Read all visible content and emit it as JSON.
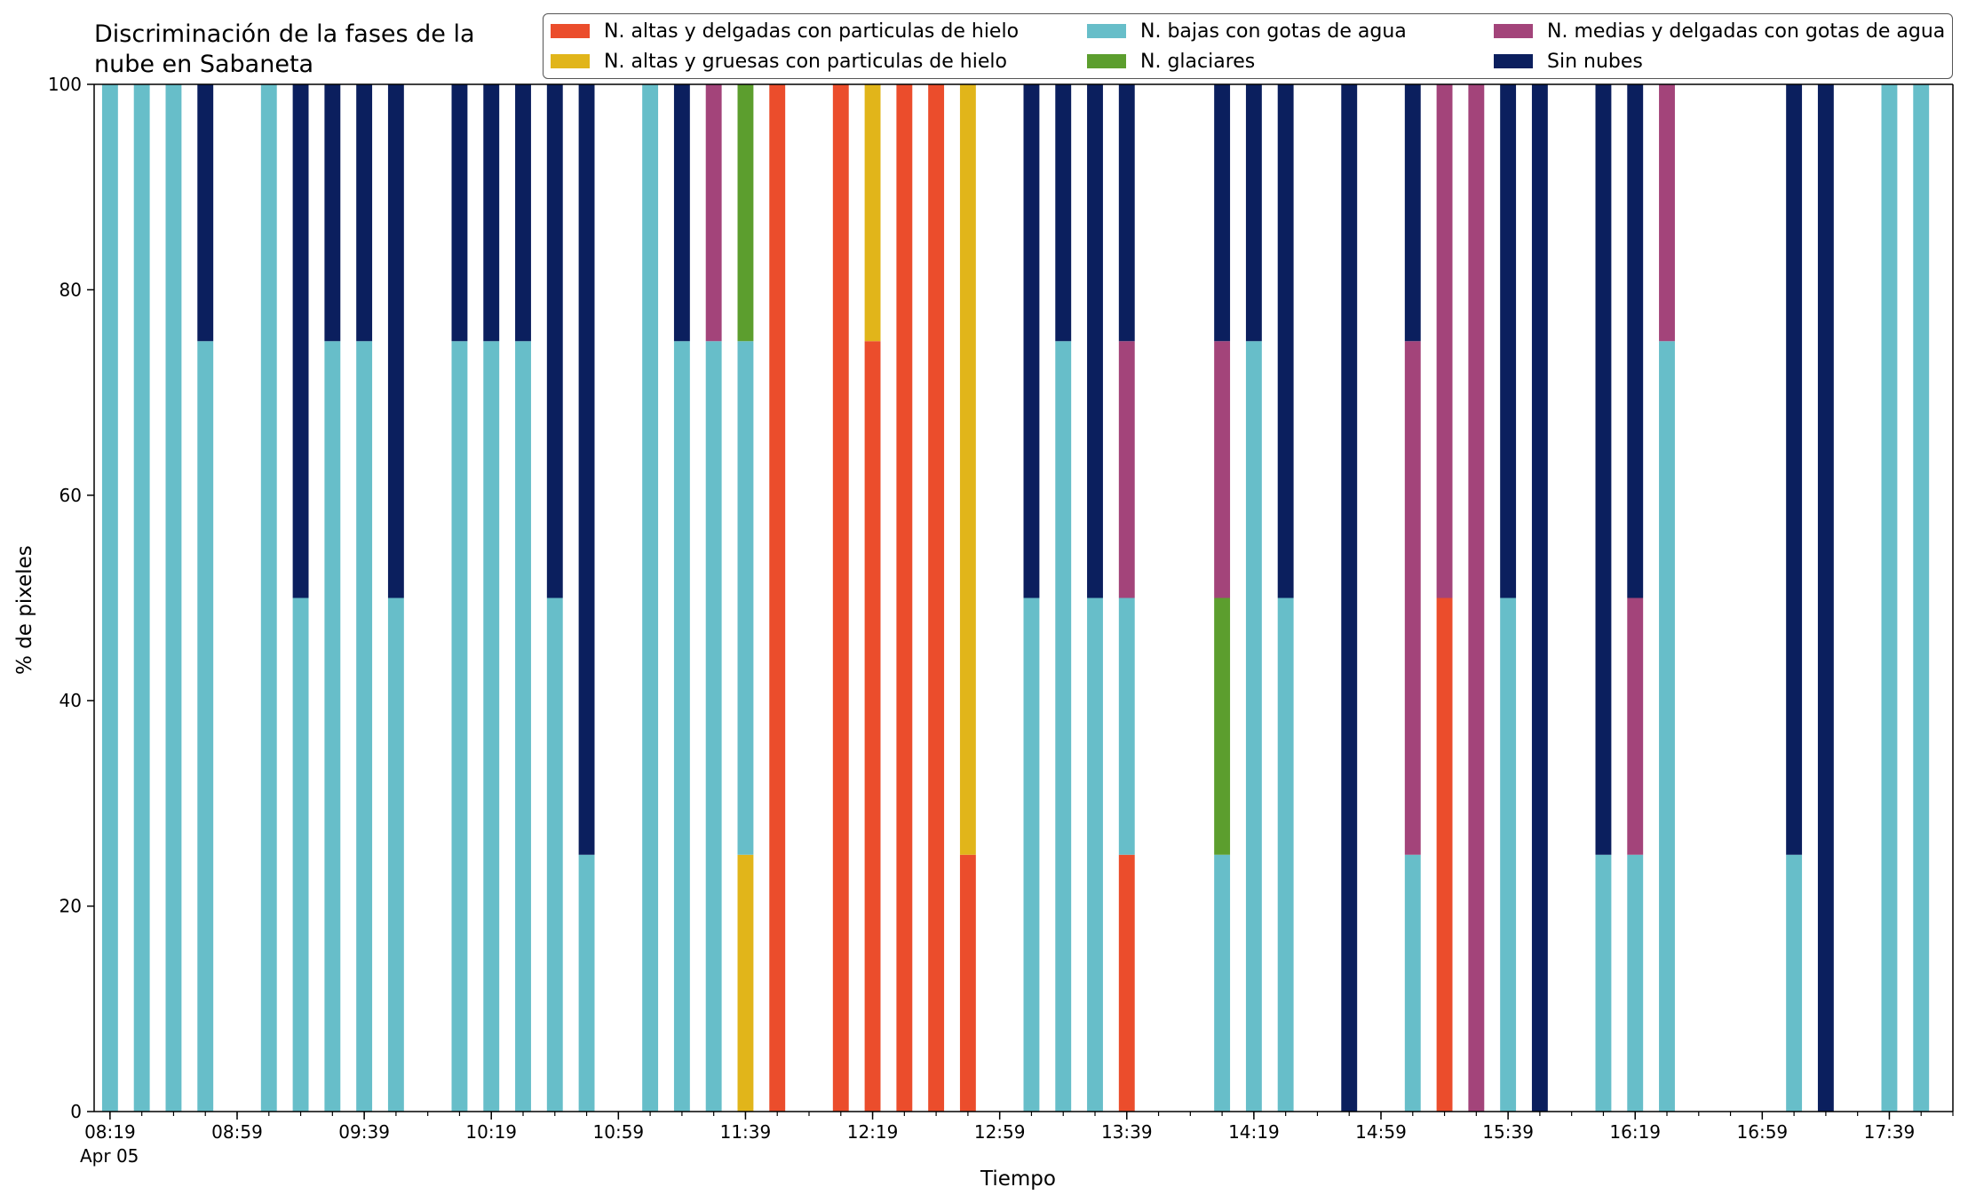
{
  "chart_data": {
    "type": "bar",
    "stacked": true,
    "title": "Discriminación de la fases de la nube en Sabaneta",
    "title_lines": [
      "Discriminación de la fases de la",
      "nube en Sabaneta"
    ],
    "xlabel": "Tiempo",
    "ylabel": "% de pixeles",
    "date_label": "Apr 05",
    "ylim": [
      0,
      100
    ],
    "yticks": [
      0,
      20,
      40,
      60,
      80,
      100
    ],
    "xlim_minutes": [
      "08:14",
      "17:59"
    ],
    "xtick_labels": [
      "08:19",
      "08:59",
      "09:39",
      "10:19",
      "10:59",
      "11:39",
      "12:19",
      "12:59",
      "13:39",
      "14:19",
      "14:59",
      "15:39",
      "16:19",
      "16:59",
      "17:39"
    ],
    "grid": false,
    "legend_position": "top-right",
    "series": [
      {
        "name": "N. altas y delgadas con particulas de hielo",
        "color": "#EB4D2C"
      },
      {
        "name": "N. altas y gruesas con particulas de hielo",
        "color": "#E1B51A"
      },
      {
        "name": "N. bajas con gotas de agua",
        "color": "#67BEC9"
      },
      {
        "name": "N. glaciares",
        "color": "#5C9E2E"
      },
      {
        "name": "N. medias y delgadas con gotas de agua",
        "color": "#A3447A"
      },
      {
        "name": "Sin nubes",
        "color": "#0B1F5E"
      }
    ],
    "bars": [
      {
        "time": "08:19",
        "values": [
          0,
          0,
          100,
          0,
          0,
          0
        ]
      },
      {
        "time": "08:29",
        "values": [
          0,
          0,
          100,
          0,
          0,
          0
        ]
      },
      {
        "time": "08:39",
        "values": [
          0,
          0,
          100,
          0,
          0,
          0
        ]
      },
      {
        "time": "08:49",
        "values": [
          0,
          0,
          75,
          0,
          0,
          25
        ]
      },
      {
        "time": "09:09",
        "values": [
          0,
          0,
          100,
          0,
          0,
          0
        ]
      },
      {
        "time": "09:19",
        "values": [
          0,
          0,
          50,
          0,
          0,
          50
        ]
      },
      {
        "time": "09:29",
        "values": [
          0,
          0,
          75,
          0,
          0,
          25
        ]
      },
      {
        "time": "09:39",
        "values": [
          0,
          0,
          75,
          0,
          0,
          25
        ]
      },
      {
        "time": "09:49",
        "values": [
          0,
          0,
          50,
          0,
          0,
          50
        ]
      },
      {
        "time": "10:09",
        "values": [
          0,
          0,
          75,
          0,
          0,
          25
        ]
      },
      {
        "time": "10:19",
        "values": [
          0,
          0,
          75,
          0,
          0,
          25
        ]
      },
      {
        "time": "10:29",
        "values": [
          0,
          0,
          75,
          0,
          0,
          25
        ]
      },
      {
        "time": "10:39",
        "values": [
          0,
          0,
          50,
          0,
          0,
          50
        ]
      },
      {
        "time": "10:49",
        "values": [
          0,
          0,
          25,
          0,
          0,
          75
        ]
      },
      {
        "time": "11:09",
        "values": [
          0,
          0,
          100,
          0,
          0,
          0
        ]
      },
      {
        "time": "11:19",
        "values": [
          0,
          0,
          75,
          0,
          0,
          25
        ]
      },
      {
        "time": "11:29",
        "values": [
          0,
          0,
          75,
          0,
          25,
          0
        ]
      },
      {
        "time": "11:39",
        "values": [
          0,
          25,
          50,
          25,
          0,
          0
        ]
      },
      {
        "time": "11:49",
        "values": [
          100,
          0,
          0,
          0,
          0,
          0
        ]
      },
      {
        "time": "12:09",
        "values": [
          100,
          0,
          0,
          0,
          0,
          0
        ]
      },
      {
        "time": "12:19",
        "values": [
          75,
          25,
          0,
          0,
          0,
          0
        ]
      },
      {
        "time": "12:29",
        "values": [
          100,
          0,
          0,
          0,
          0,
          0
        ]
      },
      {
        "time": "12:39",
        "values": [
          100,
          0,
          0,
          0,
          0,
          0
        ]
      },
      {
        "time": "12:49",
        "values": [
          25,
          75,
          0,
          0,
          0,
          0
        ]
      },
      {
        "time": "13:09",
        "values": [
          0,
          0,
          50,
          0,
          0,
          50
        ]
      },
      {
        "time": "13:19",
        "values": [
          0,
          0,
          75,
          0,
          0,
          25
        ]
      },
      {
        "time": "13:29",
        "values": [
          0,
          0,
          50,
          0,
          0,
          50
        ]
      },
      {
        "time": "13:39",
        "values": [
          25,
          0,
          25,
          0,
          25,
          25
        ]
      },
      {
        "time": "14:09",
        "values": [
          0,
          0,
          25,
          25,
          25,
          25
        ]
      },
      {
        "time": "14:19",
        "values": [
          0,
          0,
          75,
          0,
          0,
          25
        ]
      },
      {
        "time": "14:29",
        "values": [
          0,
          0,
          50,
          0,
          0,
          50
        ]
      },
      {
        "time": "14:49",
        "values": [
          0,
          0,
          0,
          0,
          0,
          100
        ]
      },
      {
        "time": "15:09",
        "values": [
          0,
          0,
          25,
          0,
          50,
          25
        ]
      },
      {
        "time": "15:19",
        "values": [
          50,
          0,
          0,
          0,
          50,
          0
        ]
      },
      {
        "time": "15:29",
        "values": [
          0,
          0,
          0,
          0,
          100,
          0
        ]
      },
      {
        "time": "15:39",
        "values": [
          0,
          0,
          50,
          0,
          0,
          50
        ]
      },
      {
        "time": "15:49",
        "values": [
          0,
          0,
          0,
          0,
          0,
          100
        ]
      },
      {
        "time": "16:09",
        "values": [
          0,
          0,
          25,
          0,
          0,
          75
        ]
      },
      {
        "time": "16:19",
        "values": [
          0,
          0,
          25,
          0,
          25,
          50
        ]
      },
      {
        "time": "16:29",
        "values": [
          0,
          0,
          75,
          0,
          25,
          0
        ]
      },
      {
        "time": "17:09",
        "values": [
          0,
          0,
          25,
          0,
          0,
          75
        ]
      },
      {
        "time": "17:19",
        "values": [
          0,
          0,
          0,
          0,
          0,
          100
        ]
      },
      {
        "time": "17:39",
        "values": [
          0,
          0,
          100,
          0,
          0,
          0
        ]
      },
      {
        "time": "17:49",
        "values": [
          0,
          0,
          100,
          0,
          0,
          0
        ]
      }
    ]
  }
}
